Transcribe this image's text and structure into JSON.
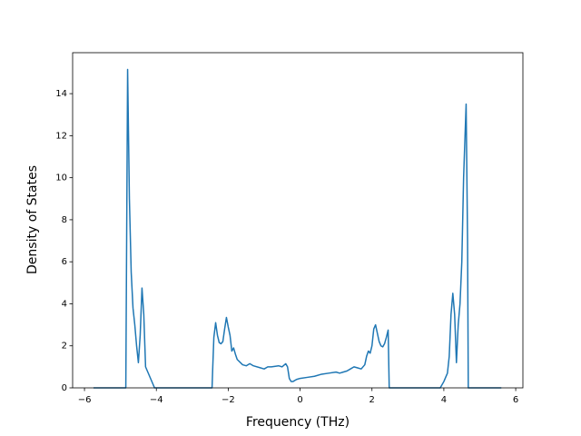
{
  "chart_data": {
    "type": "line",
    "xlabel": "Frequency (THz)",
    "ylabel": "Density of States",
    "xlim": [
      -6.33,
      6.2
    ],
    "ylim": [
      0,
      15.95
    ],
    "xticks": [
      {
        "value": -6,
        "label": "−6"
      },
      {
        "value": -4,
        "label": "−4"
      },
      {
        "value": -2,
        "label": "−2"
      },
      0,
      2,
      4,
      6
    ],
    "yticks": [
      0,
      2,
      4,
      6,
      8,
      10,
      12,
      14
    ],
    "grid": false,
    "series": [
      {
        "color": "#1f77b4",
        "x": [
          -5.75,
          -4.85,
          -4.8,
          -4.75,
          -4.7,
          -4.65,
          -4.6,
          -4.55,
          -4.5,
          -4.45,
          -4.4,
          -4.35,
          -4.3,
          -4.2,
          -4.1,
          -4.05,
          -2.45,
          -2.43,
          -2.4,
          -2.35,
          -2.3,
          -2.25,
          -2.2,
          -2.15,
          -2.1,
          -2.05,
          -2.0,
          -1.95,
          -1.9,
          -1.85,
          -1.8,
          -1.75,
          -1.6,
          -1.5,
          -1.4,
          -1.3,
          -1.1,
          -1.0,
          -0.9,
          -0.8,
          -0.6,
          -0.5,
          -0.4,
          -0.35,
          -0.3,
          -0.25,
          -0.2,
          -0.1,
          0,
          0.2,
          0.4,
          0.6,
          0.8,
          1.0,
          1.1,
          1.2,
          1.3,
          1.4,
          1.5,
          1.6,
          1.7,
          1.8,
          1.85,
          1.9,
          1.95,
          2.0,
          2.05,
          2.1,
          2.15,
          2.2,
          2.25,
          2.3,
          2.35,
          2.4,
          2.45,
          2.48,
          3.9,
          4.0,
          4.1,
          4.15,
          4.2,
          4.25,
          4.3,
          4.35,
          4.4,
          4.45,
          4.5,
          4.55,
          4.62,
          4.66,
          4.68,
          5.6
        ],
        "values": [
          0,
          0,
          15.15,
          9,
          5.5,
          3.8,
          3,
          2,
          1.2,
          2.5,
          4.75,
          3.5,
          1,
          0.6,
          0.2,
          0,
          0,
          1,
          2.4,
          3.1,
          2.5,
          2.15,
          2.1,
          2.2,
          2.8,
          3.35,
          2.9,
          2.5,
          1.75,
          1.9,
          1.6,
          1.35,
          1.1,
          1.05,
          1.15,
          1.05,
          0.95,
          0.9,
          1.0,
          1.0,
          1.05,
          1.0,
          1.15,
          1.0,
          0.45,
          0.3,
          0.3,
          0.4,
          0.45,
          0.5,
          0.55,
          0.65,
          0.7,
          0.75,
          0.7,
          0.75,
          0.8,
          0.9,
          1.0,
          0.95,
          0.9,
          1.1,
          1.5,
          1.75,
          1.65,
          2.0,
          2.8,
          3.0,
          2.6,
          2.2,
          2.0,
          1.95,
          2.1,
          2.4,
          2.75,
          0,
          0,
          0.3,
          0.7,
          1.5,
          3.5,
          4.5,
          3.5,
          1.2,
          3,
          4,
          6,
          10,
          13.5,
          7,
          0,
          0
        ]
      }
    ]
  }
}
